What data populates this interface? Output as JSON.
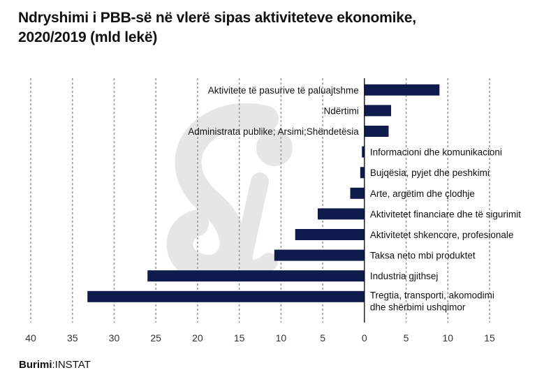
{
  "title_line1": "Ndryshimi i PBB-së në vlerë sipas aktiviteteve ekonomike,",
  "title_line2": "2020/2019 (mld lekë)",
  "source_label": "Burimi",
  "source_value": ":INSTAT",
  "colors": {
    "bar": "#0f1a4d",
    "grid": "#9a9a9a",
    "axis": "#000000",
    "watermark": "#e6e6e6"
  },
  "chart_data": {
    "type": "bar",
    "orientation": "horizontal",
    "title": "Ndryshimi i PBB-së në vlerë sipas aktiviteteve ekonomike, 2020/2019 (mld lekë)",
    "xlabel": "",
    "ylabel": "",
    "xlim": [
      -40,
      15
    ],
    "grid": true,
    "tick_values": [
      -40,
      -35,
      -30,
      -25,
      -20,
      -15,
      -10,
      -5,
      0,
      5,
      10,
      15
    ],
    "tick_labels": [
      "40",
      "35",
      "30",
      "25",
      "20",
      "15",
      "10",
      "5",
      "0",
      "5",
      "10",
      "15"
    ],
    "categories": [
      [
        "Aktivitete të pasurive të paluajtshme"
      ],
      [
        "Ndërtimi"
      ],
      [
        "Administrata publike; Arsimi;Shëndetësia"
      ],
      [
        "Informacioni dhe komunikacioni"
      ],
      [
        "Bujqësia, pyjet dhe peshkimi"
      ],
      [
        "Arte, argëtim dhe çlodhje"
      ],
      [
        "Aktivitetet financiare dhe të sigurimit"
      ],
      [
        "Aktivitetet shkencore, profesionale"
      ],
      [
        "Taksa neto mbi produktet"
      ],
      [
        "Industria gjithsej"
      ],
      [
        "Tregtia, transporti, akomodimi",
        "dhe shërbimi ushqimor"
      ]
    ],
    "values": [
      9.0,
      3.2,
      2.9,
      -0.3,
      -0.5,
      -1.7,
      -5.6,
      -8.3,
      -10.8,
      -26.0,
      -33.2
    ]
  }
}
